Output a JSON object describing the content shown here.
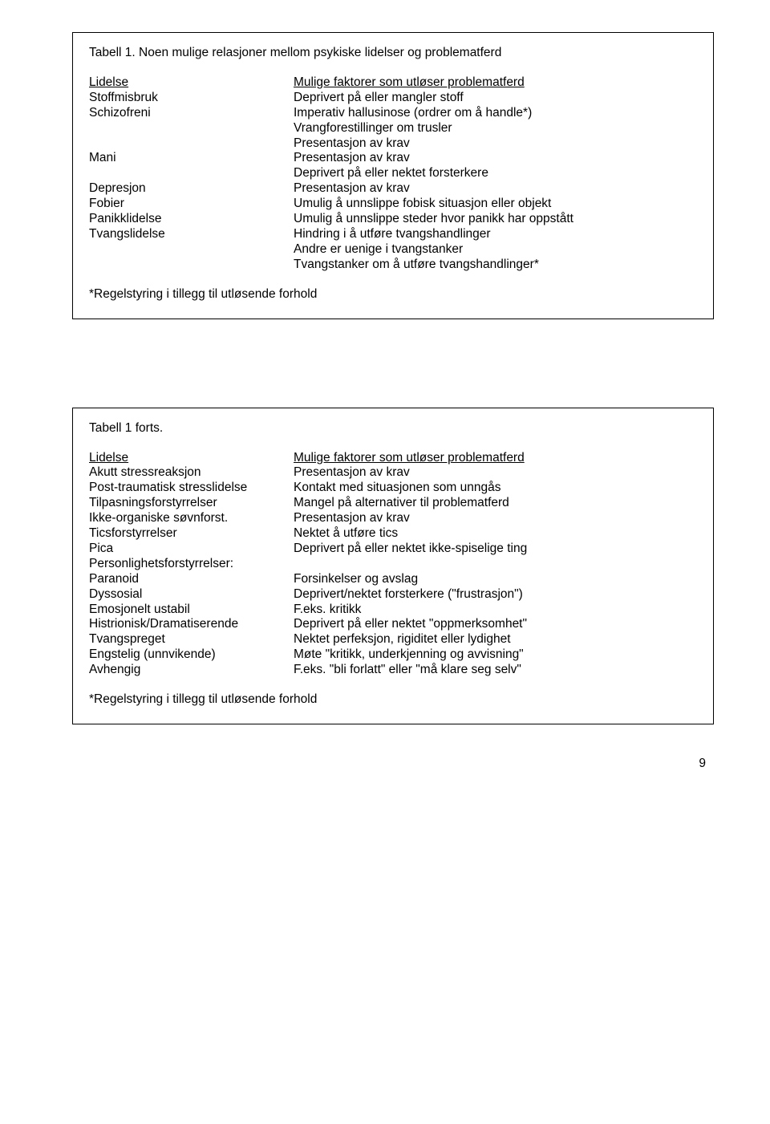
{
  "table1": {
    "title": "Tabell 1. Noen mulige relasjoner mellom psykiske lidelser og problematferd",
    "header_left": "Lidelse",
    "header_right": "Mulige faktorer som utløser problematferd",
    "rows": [
      {
        "l": "Stoffmisbruk",
        "r": "Deprivert på eller mangler stoff"
      },
      {
        "l": "Schizofreni",
        "r": "Imperativ hallusinose (ordrer om å handle*)"
      },
      {
        "l": "",
        "r": "Vrangforestillinger om trusler"
      },
      {
        "l": "",
        "r": "Presentasjon av krav"
      },
      {
        "l": "Mani",
        "r": "Presentasjon av krav"
      },
      {
        "l": "",
        "r": "Deprivert på eller nektet forsterkere"
      },
      {
        "l": "Depresjon",
        "r": "Presentasjon av krav"
      },
      {
        "l": "Fobier",
        "r": "Umulig å unnslippe fobisk situasjon eller objekt"
      },
      {
        "l": "Panikklidelse",
        "r": "Umulig å unnslippe steder hvor panikk har oppstått"
      },
      {
        "l": "Tvangslidelse",
        "r": "Hindring i å utføre tvangshandlinger"
      },
      {
        "l": "",
        "r": "Andre er uenige i tvangstanker"
      },
      {
        "l": "",
        "r": "Tvangstanker om å utføre tvangshandlinger*"
      }
    ],
    "footnote": "*Regelstyring i tillegg til utløsende forhold"
  },
  "table2": {
    "title": "Tabell 1 forts.",
    "header_left": "Lidelse",
    "header_right": "Mulige faktorer som utløser problematferd",
    "rows": [
      {
        "l": "Akutt stressreaksjon",
        "r": "Presentasjon av krav"
      },
      {
        "l": "Post-traumatisk stresslidelse",
        "r": "Kontakt med situasjonen som unngås"
      },
      {
        "l": "Tilpasningsforstyrrelser",
        "r": "Mangel på alternativer til problematferd"
      },
      {
        "l": "Ikke-organiske søvnforst.",
        "r": "Presentasjon av krav"
      },
      {
        "l": "Ticsforstyrrelser",
        "r": "Nektet å utføre tics"
      },
      {
        "l": "Pica",
        "r": "Deprivert på eller nektet ikke-spiselige ting"
      },
      {
        "l": "Personlighetsforstyrrelser:",
        "r": ""
      },
      {
        "l": "Paranoid",
        "r": "Forsinkelser og avslag"
      },
      {
        "l": "Dyssosial",
        "r": "Deprivert/nektet forsterkere (\"frustrasjon\")"
      },
      {
        "l": "Emosjonelt ustabil",
        "r": "F.eks. kritikk"
      },
      {
        "l": "Histrionisk/Dramatiserende",
        "r": "Deprivert på eller nektet \"oppmerksomhet\""
      },
      {
        "l": "Tvangspreget",
        "r": "Nektet perfeksjon, rigiditet eller lydighet"
      },
      {
        "l": "Engstelig (unnvikende)",
        "r": "Møte \"kritikk, underkjenning og avvisning\""
      },
      {
        "l": "Avhengig",
        "r": "F.eks. \"bli forlatt\" eller \"må klare seg selv\""
      }
    ],
    "footnote": "*Regelstyring i tillegg til utløsende forhold"
  },
  "page_number": "9"
}
